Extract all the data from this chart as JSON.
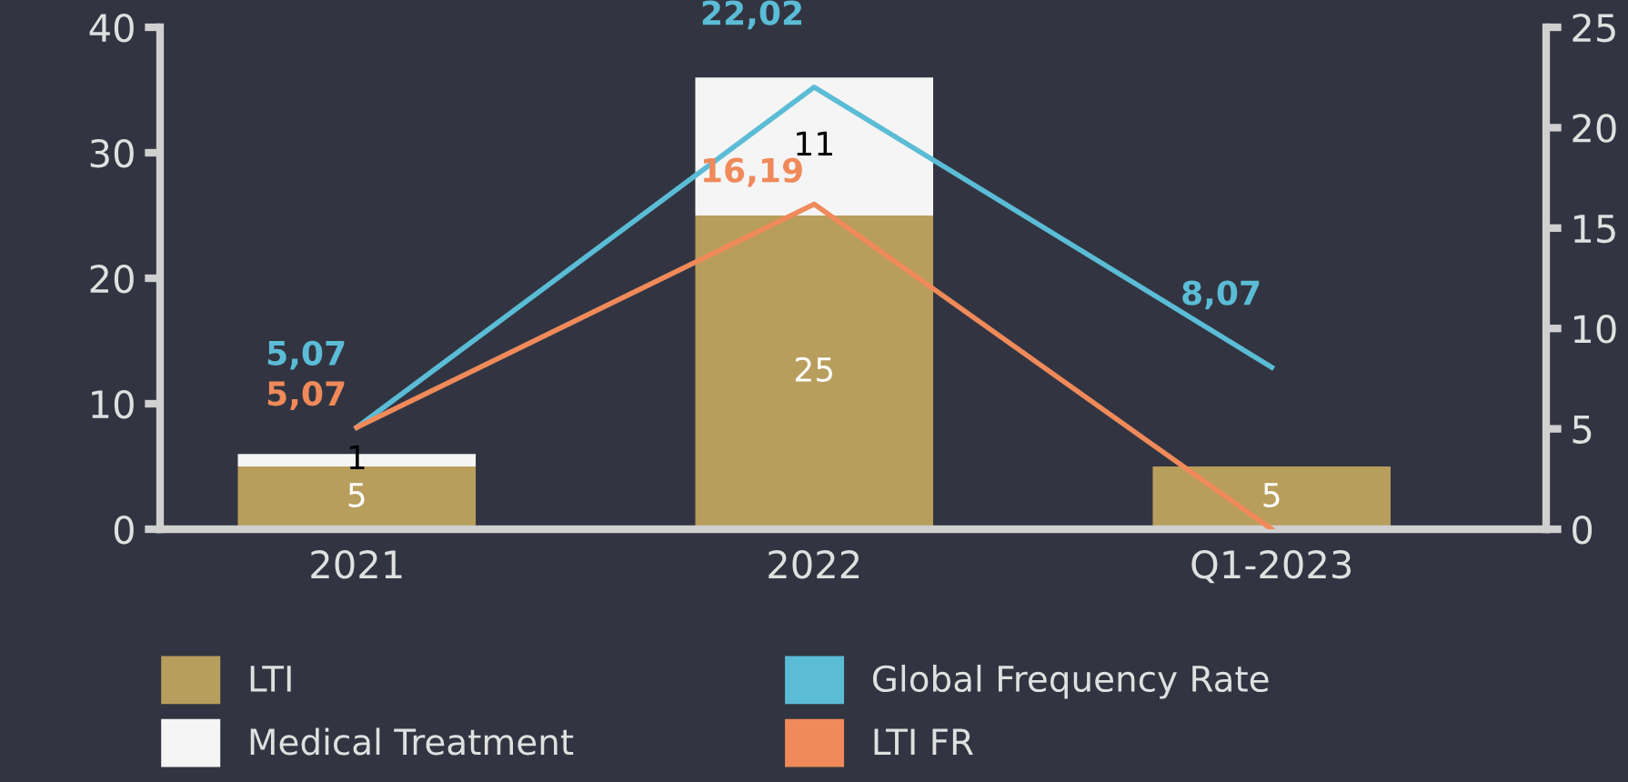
{
  "chart_data": {
    "type": "bar",
    "stacked": true,
    "categories": [
      "2021",
      "2022",
      "Q1-2023"
    ],
    "ylim": [
      0,
      40
    ],
    "yticks": [
      0,
      10,
      20,
      30,
      40
    ],
    "y2lim": [
      0,
      25
    ],
    "y2ticks": [
      0,
      5,
      10,
      15,
      20,
      25
    ],
    "series": [
      {
        "name": "LTI",
        "color": "#b89e5c",
        "values": [
          5,
          25,
          5
        ],
        "value_labels": [
          "5",
          "25",
          "5"
        ]
      },
      {
        "name": "Medical Treatment",
        "color": "#f5f5f5",
        "values": [
          1,
          11,
          null
        ],
        "value_labels": [
          "1",
          "11",
          null
        ]
      },
      {
        "name": "Global Frequency Rate",
        "type": "line",
        "axis": "y2",
        "color": "#5bbcd6",
        "values": [
          5.07,
          22.02,
          8.07
        ],
        "value_labels": [
          "5,07",
          "22,02",
          "8,07"
        ]
      },
      {
        "name": "LTI FR",
        "type": "line",
        "axis": "y2",
        "color": "#f08a5a",
        "values": [
          5.07,
          16.19,
          0
        ],
        "value_labels": [
          "5,07",
          "16,19",
          null
        ]
      }
    ],
    "grid": false,
    "legend": "bottom"
  }
}
